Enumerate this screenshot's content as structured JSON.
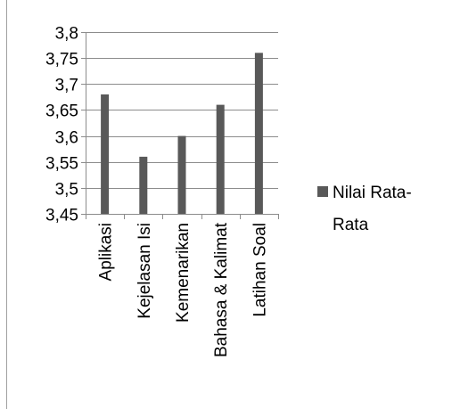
{
  "chart_data": {
    "type": "bar",
    "categories": [
      "Aplikasi",
      "Kejelasan Isi",
      "Kemenarikan",
      "Bahasa & Kalimat",
      "Latihan Soal"
    ],
    "series": [
      {
        "name": "Nilai Rata-Rata",
        "values": [
          3.68,
          3.56,
          3.6,
          3.66,
          3.76
        ],
        "color": "#595959"
      }
    ],
    "y_ticks": [
      "3,8",
      "3,75",
      "3,7",
      "3,65",
      "3,6",
      "3,55",
      "3,5",
      "3,45"
    ],
    "ylim": [
      3.45,
      3.8
    ],
    "grid": true,
    "legend_position": "right",
    "legend_lines": [
      "Nilai Rata-",
      "Rata"
    ],
    "title": "",
    "xlabel": "",
    "ylabel": ""
  }
}
